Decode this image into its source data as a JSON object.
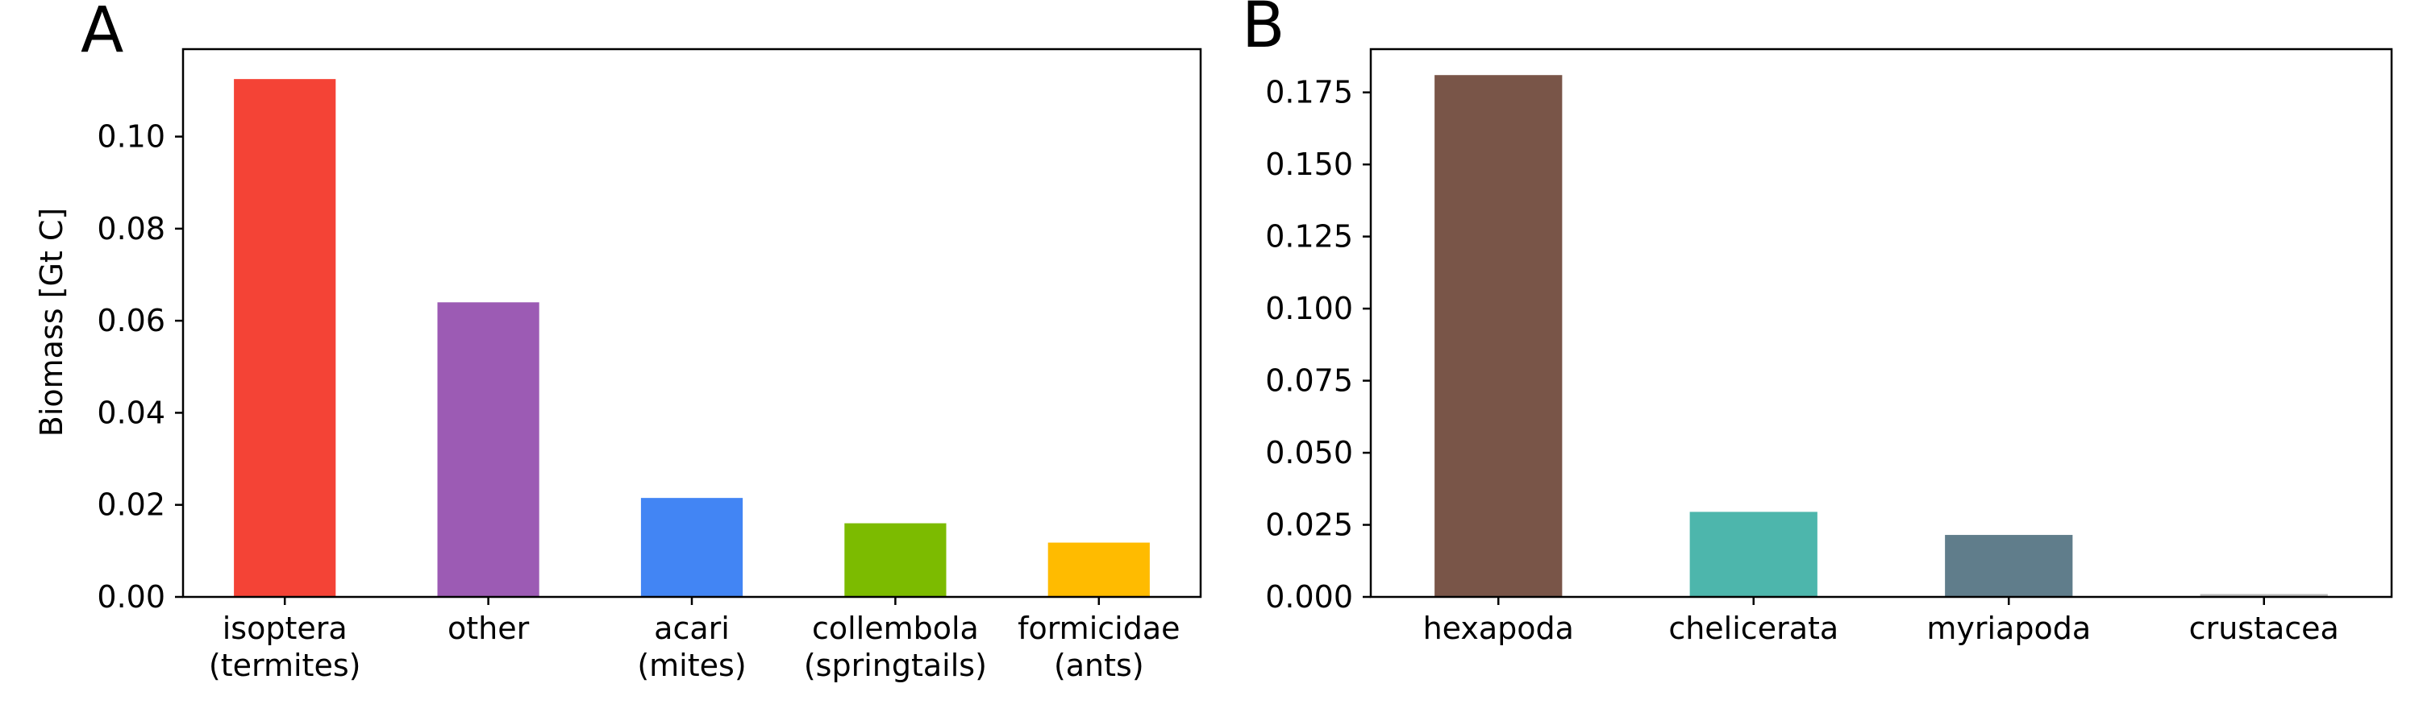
{
  "chart_data": [
    {
      "type": "bar",
      "panel_label": "A",
      "ylabel": "Biomass [Gt C]",
      "xlabel": "",
      "ylim": [
        0,
        0.119
      ],
      "yticks": [
        0.0,
        0.02,
        0.04,
        0.06,
        0.08,
        0.1
      ],
      "ytick_labels": [
        "0.00",
        "0.02",
        "0.04",
        "0.06",
        "0.08",
        "0.10"
      ],
      "categories": [
        [
          "isoptera",
          "(termites)"
        ],
        [
          "other"
        ],
        [
          "acari",
          "(mites)"
        ],
        [
          "collembola",
          "(springtails)"
        ],
        [
          "formicidae",
          "(ants)"
        ]
      ],
      "values": [
        0.1125,
        0.064,
        0.0215,
        0.016,
        0.0118
      ],
      "colors": [
        "#F44336",
        "#9C5BB4",
        "#4285F4",
        "#7CBB00",
        "#FFBB00"
      ],
      "grid": false
    },
    {
      "type": "bar",
      "panel_label": "B",
      "ylabel": "",
      "xlabel": "",
      "ylim": [
        0,
        0.19
      ],
      "yticks": [
        0.0,
        0.025,
        0.05,
        0.075,
        0.1,
        0.125,
        0.15,
        0.175
      ],
      "ytick_labels": [
        "0.000",
        "0.025",
        "0.050",
        "0.075",
        "0.100",
        "0.125",
        "0.150",
        "0.175"
      ],
      "categories": [
        [
          "hexapoda"
        ],
        [
          "chelicerata"
        ],
        [
          "myriapoda"
        ],
        [
          "crustacea"
        ]
      ],
      "values": [
        0.181,
        0.0295,
        0.0215,
        0.001
      ],
      "colors": [
        "#795548",
        "#4DB6AC",
        "#607D8B",
        "#BDBDBD"
      ],
      "grid": false
    }
  ]
}
